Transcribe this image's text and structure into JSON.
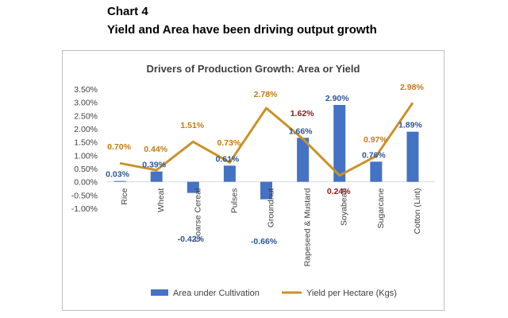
{
  "header": {
    "chart_number": "Chart 4",
    "subtitle": "Yield and Area have been driving output growth"
  },
  "chart_data": {
    "type": "bar",
    "title": "Drivers of Production Growth: Area or Yield",
    "categories": [
      "Rice",
      "Wheat",
      "Coarse Cereal",
      "Pulses",
      "Groundnut",
      "Rapeseed & Mustard",
      "Soyabean",
      "Sugarcane",
      "Cotton (Lint)"
    ],
    "series": [
      {
        "name": "Area under Cultivation",
        "type": "bar",
        "color": "#4472C4",
        "label_color": "#2E5597",
        "values": [
          0.03,
          0.39,
          -0.42,
          0.61,
          -0.66,
          1.66,
          2.9,
          0.76,
          1.89
        ],
        "labels": [
          "0.03%",
          "0.39%",
          "-0.42%",
          "0.61%",
          "-0.66%",
          "1.66%",
          "2.90%",
          "0.76%",
          "1.89%"
        ]
      },
      {
        "name": "Yield per Hectare (Kgs)",
        "type": "line",
        "color": "#C9922A",
        "label_color": "#C47A12",
        "values": [
          0.7,
          0.44,
          1.51,
          0.73,
          2.78,
          1.62,
          0.24,
          0.97,
          2.98
        ],
        "labels": [
          "0.70%",
          "0.44%",
          "1.51%",
          "0.73%",
          "2.78%",
          "1.62%",
          "0.24%",
          "0.97%",
          "2.98%"
        ]
      }
    ],
    "ylim": [
      -1.0,
      3.5
    ],
    "yticks": [
      "-1.00%",
      "-0.50%",
      "0.00%",
      "0.50%",
      "1.00%",
      "1.50%",
      "2.00%",
      "2.50%",
      "3.00%",
      "3.50%"
    ],
    "ytick_values": [
      -1.0,
      -0.5,
      0.0,
      0.5,
      1.0,
      1.5,
      2.0,
      2.5,
      3.0,
      3.5
    ],
    "legend": "bottom",
    "grid": false
  }
}
